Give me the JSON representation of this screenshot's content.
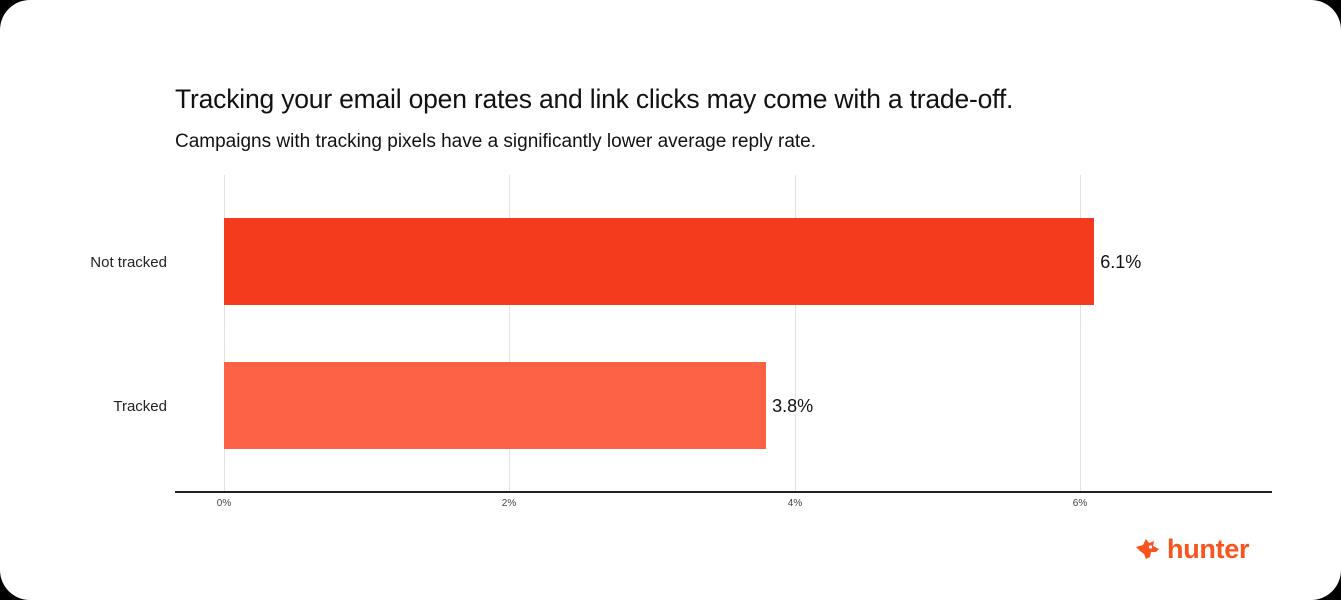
{
  "header": {
    "title": "Tracking your email open rates and link clicks may come with a trade-off.",
    "subtitle": "Campaigns with tracking pixels have a significantly lower average reply rate."
  },
  "axis": {
    "ticks": [
      "0%",
      "2%",
      "4%",
      "6%"
    ]
  },
  "bars": [
    {
      "label": "Not tracked",
      "value": 6.1,
      "value_label": "6.1%",
      "color": "#f53b1e"
    },
    {
      "label": "Tracked",
      "value": 3.8,
      "value_label": "3.8%",
      "color": "#fe6244"
    }
  ],
  "brand": {
    "name": "hunter",
    "icon": "fox-head-icon",
    "color": "#fa5320"
  },
  "chart_data": {
    "type": "bar",
    "orientation": "horizontal",
    "title": "Tracking your email open rates and link clicks may come with a trade-off.",
    "subtitle": "Campaigns with tracking pixels have a significantly lower average reply rate.",
    "categories": [
      "Not tracked",
      "Tracked"
    ],
    "values": [
      6.1,
      3.8
    ],
    "value_labels": [
      "6.1%",
      "3.8%"
    ],
    "xlabel": "",
    "ylabel": "",
    "xlim": [
      0,
      7.7
    ],
    "x_ticks": [
      "0%",
      "2%",
      "4%",
      "6%"
    ],
    "grid": true,
    "legend": "none",
    "colors": [
      "#f53b1e",
      "#fe6244"
    ],
    "unit": "average reply rate (%)"
  }
}
